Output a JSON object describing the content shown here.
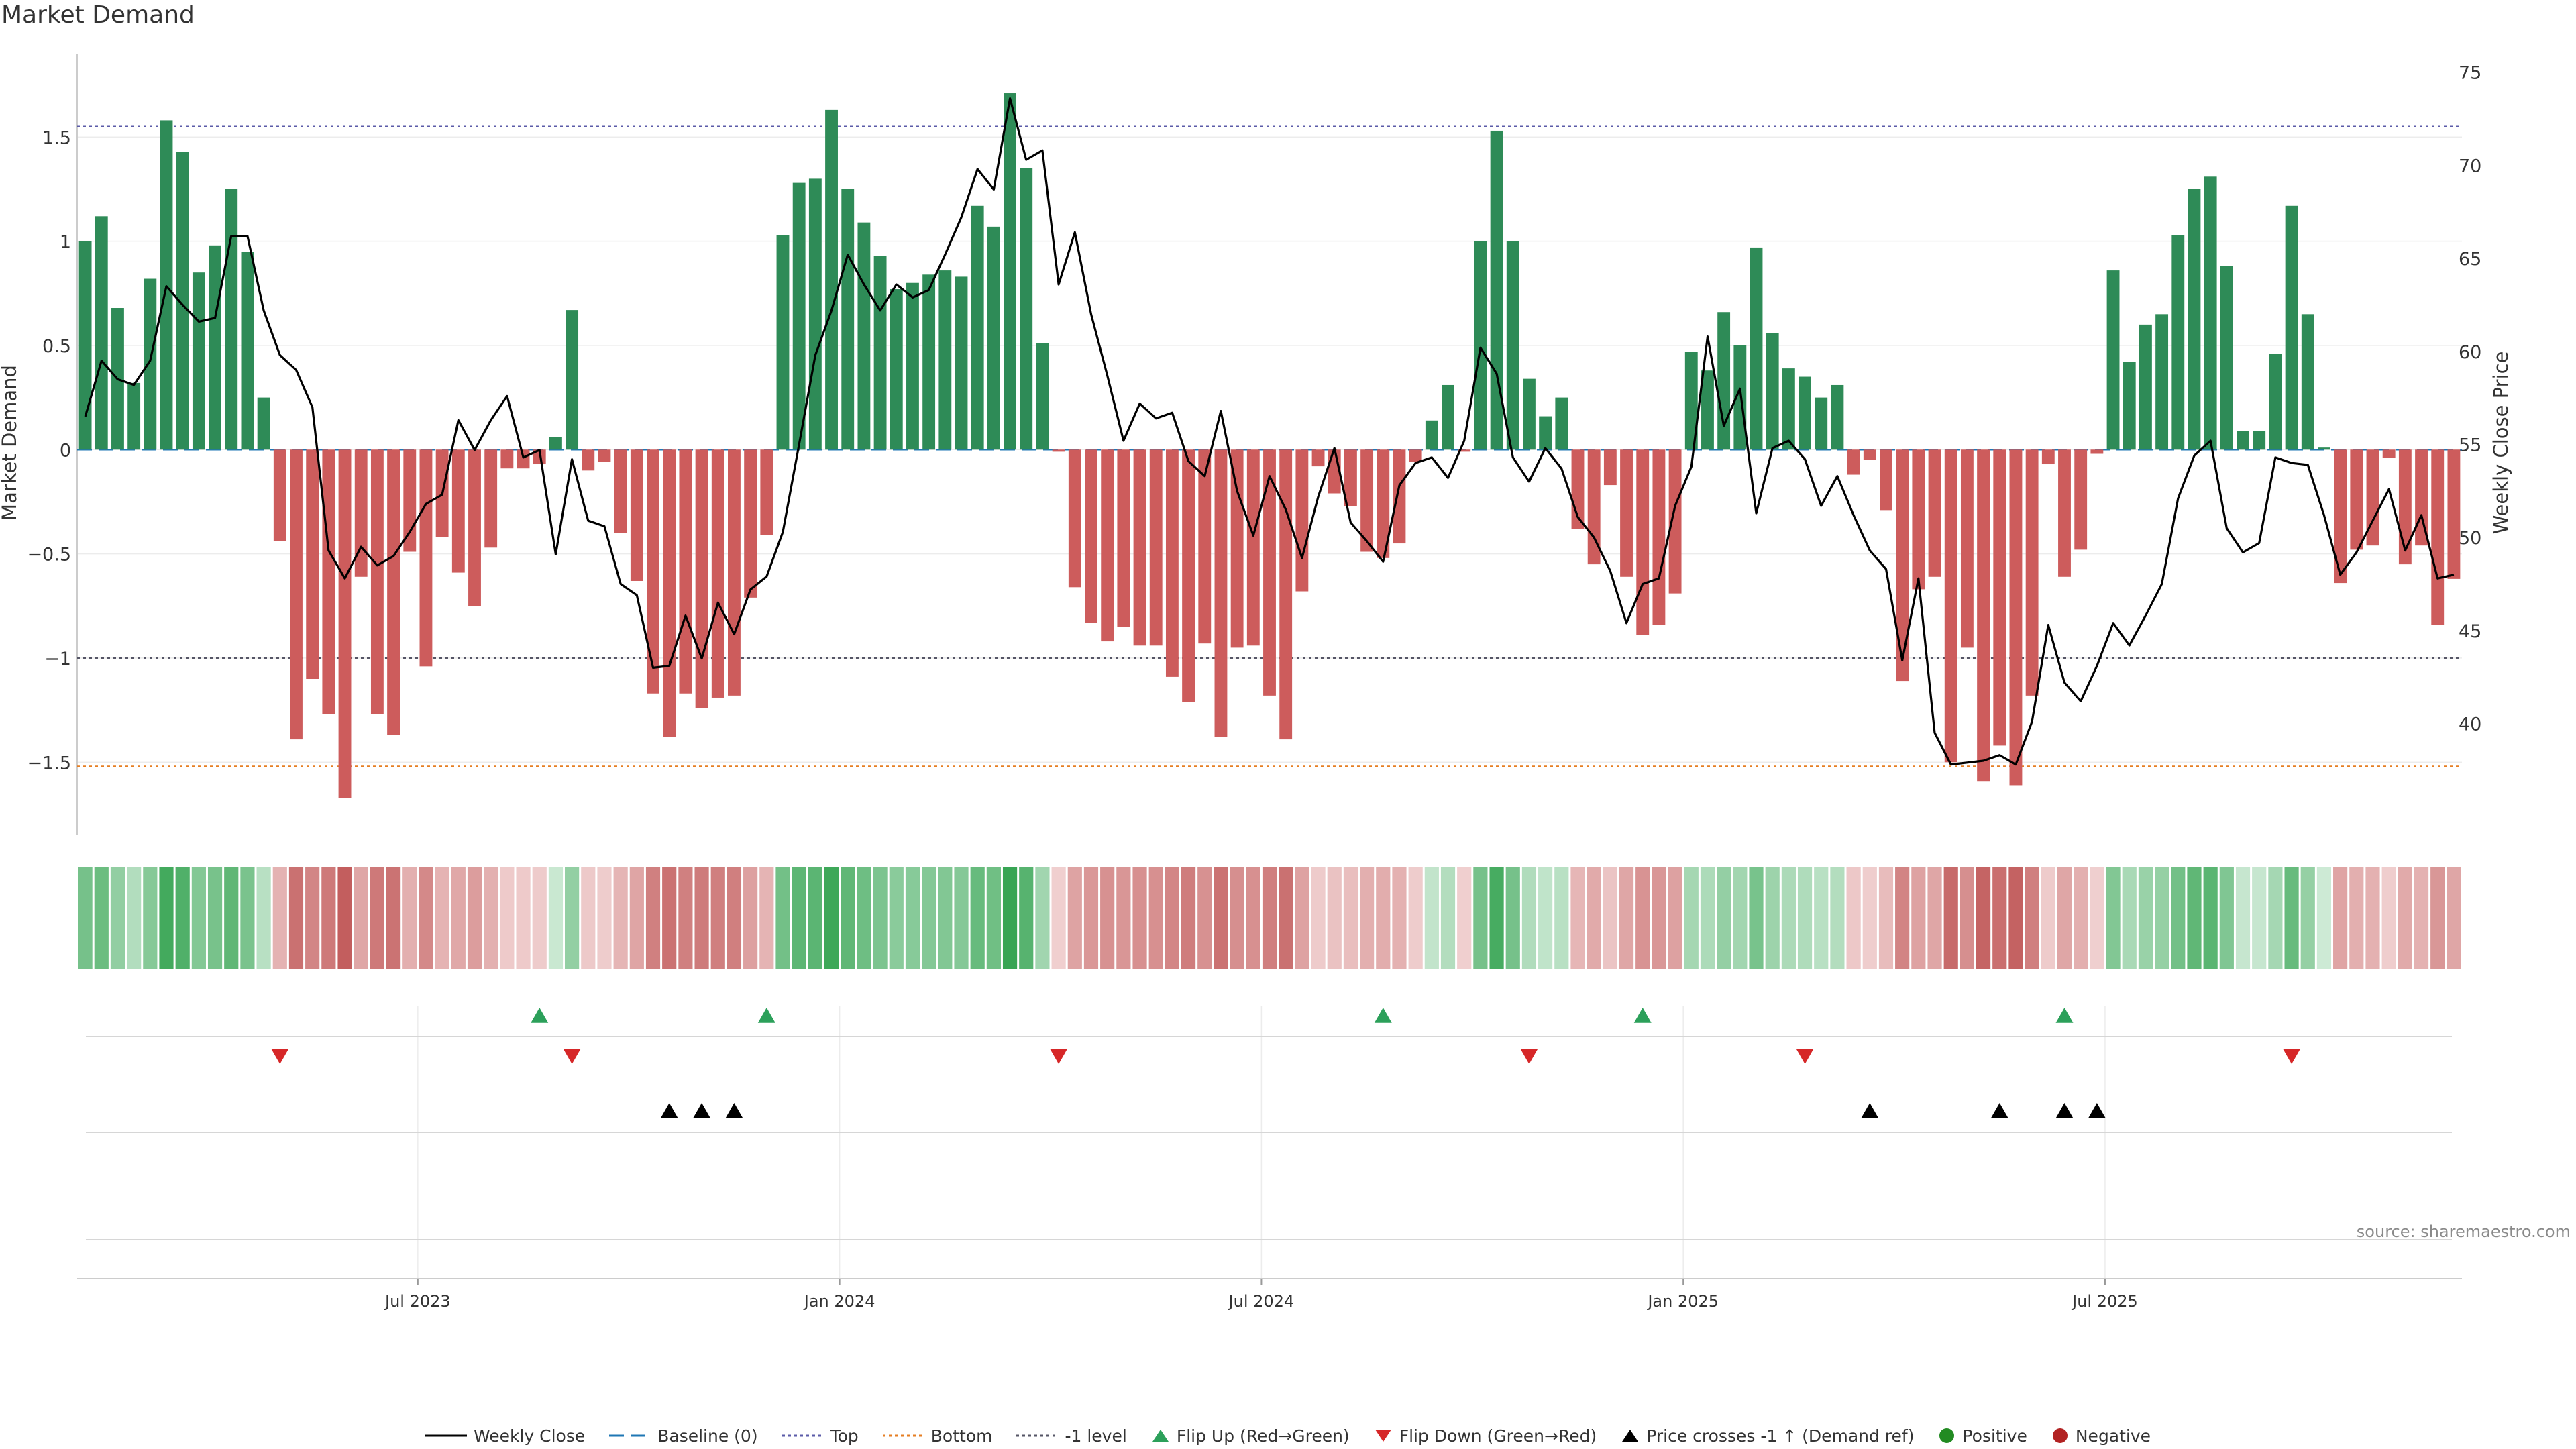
{
  "chart_data": {
    "type": "bar",
    "title": "Market Demand",
    "ylabel": "Market Demand",
    "ylabel_right": "Weekly Close Price",
    "ylim": [
      -1.85,
      1.9
    ],
    "ylim_right": [
      34,
      76
    ],
    "y_ticks": [
      -1.5,
      -1,
      -0.5,
      0,
      0.5,
      1,
      1.5
    ],
    "y_tick_labels": [
      "−1.5",
      "−1",
      "−0.5",
      "0",
      "0.5",
      "1",
      "1.5"
    ],
    "y_right_ticks": [
      40,
      45,
      50,
      55,
      60,
      65,
      70,
      75
    ],
    "x_ticks": [
      {
        "week": 21,
        "label": "Jul 2023"
      },
      {
        "week": 47,
        "label": "Jan 2024"
      },
      {
        "week": 73,
        "label": "Jul 2024"
      },
      {
        "week": 99,
        "label": "Jan 2025"
      },
      {
        "week": 125,
        "label": "Jul 2025"
      }
    ],
    "reference_lines": {
      "top": 1.55,
      "bottom": -1.52,
      "minus_one": -1.0,
      "baseline": 0
    },
    "demand": [
      1.0,
      1.12,
      0.68,
      0.32,
      0.82,
      1.58,
      1.43,
      0.85,
      0.98,
      1.25,
      0.95,
      0.25,
      -0.44,
      -1.39,
      -1.1,
      -1.27,
      -1.67,
      -0.61,
      -1.27,
      -1.37,
      -0.49,
      -1.04,
      -0.42,
      -0.59,
      -0.75,
      -0.47,
      -0.09,
      -0.09,
      -0.07,
      0.06,
      0.67,
      -0.1,
      -0.06,
      -0.4,
      -0.63,
      -1.17,
      -1.38,
      -1.17,
      -1.24,
      -1.19,
      -1.18,
      -0.71,
      -0.41,
      1.03,
      1.28,
      1.3,
      1.63,
      1.25,
      1.09,
      0.93,
      0.77,
      0.8,
      0.84,
      0.86,
      0.83,
      1.17,
      1.07,
      1.71,
      1.35,
      0.51,
      -0.01,
      -0.66,
      -0.83,
      -0.92,
      -0.85,
      -0.94,
      -0.94,
      -1.09,
      -1.21,
      -0.93,
      -1.38,
      -0.95,
      -0.94,
      -1.18,
      -1.39,
      -0.68,
      -0.08,
      -0.21,
      -0.27,
      -0.49,
      -0.52,
      -0.45,
      -0.06,
      0.14,
      0.31,
      -0.01,
      1.0,
      1.53,
      1.0,
      0.34,
      0.16,
      0.25,
      -0.38,
      -0.55,
      -0.17,
      -0.61,
      -0.89,
      -0.84,
      -0.69,
      0.47,
      0.38,
      0.66,
      0.5,
      0.97,
      0.56,
      0.39,
      0.35,
      0.25,
      0.31,
      -0.12,
      -0.05,
      -0.29,
      -1.11,
      -0.67,
      -0.61,
      -1.5,
      -0.95,
      -1.59,
      -1.42,
      -1.61,
      -1.18,
      -0.07,
      -0.61,
      -0.48,
      -0.02,
      0.86,
      0.42,
      0.6,
      0.65,
      1.03,
      1.25,
      1.31,
      0.88,
      0.09,
      0.09,
      0.46,
      1.17,
      0.65,
      0.01,
      -0.64,
      -0.48,
      -0.46,
      -0.04,
      -0.55,
      -0.46,
      -0.84,
      -0.62
    ],
    "weekly_close": [
      56.5,
      59.5,
      58.5,
      58.2,
      59.5,
      63.5,
      62.5,
      61.6,
      61.8,
      66.2,
      66.2,
      62.2,
      59.8,
      59.0,
      57.0,
      49.3,
      47.8,
      49.5,
      48.5,
      49.0,
      50.3,
      51.8,
      52.3,
      56.3,
      54.7,
      56.3,
      57.6,
      54.3,
      54.7,
      49.1,
      54.2,
      50.9,
      50.6,
      47.5,
      46.9,
      43.0,
      43.1,
      45.8,
      43.5,
      46.5,
      44.8,
      47.2,
      47.9,
      50.3,
      55.0,
      59.8,
      62.2,
      65.2,
      63.6,
      62.2,
      63.6,
      62.9,
      63.3,
      65.2,
      67.2,
      69.8,
      68.7,
      73.6,
      70.3,
      70.8,
      63.6,
      66.4,
      62.0,
      58.7,
      55.2,
      57.2,
      56.4,
      56.7,
      54.1,
      53.3,
      56.8,
      52.5,
      50.1,
      53.3,
      51.5,
      48.9,
      52.2,
      54.8,
      50.8,
      49.8,
      48.7,
      52.8,
      54.0,
      54.3,
      53.2,
      55.2,
      60.2,
      58.8,
      54.3,
      53.0,
      54.8,
      53.7,
      51.1,
      50.0,
      48.2,
      45.4,
      47.5,
      47.8,
      51.7,
      53.8,
      60.8,
      56.0,
      58.0,
      51.3,
      54.8,
      55.2,
      54.2,
      51.7,
      53.3,
      51.2,
      49.3,
      48.3,
      43.4,
      47.8,
      39.5,
      37.8,
      37.9,
      38.0,
      38.3,
      37.8,
      40.1,
      45.3,
      42.2,
      41.2,
      43.1,
      45.4,
      44.2,
      45.8,
      47.5,
      52.1,
      54.4,
      55.2,
      50.5,
      49.2,
      49.7,
      54.3,
      54.0,
      53.9,
      51.2,
      48.0,
      49.2,
      50.9,
      52.6,
      49.3,
      51.2,
      47.8,
      48.0
    ],
    "flip_up_weeks": [
      28,
      42,
      80,
      96,
      122
    ],
    "flip_down_weeks": [
      12,
      30,
      60,
      89,
      106,
      136
    ],
    "price_cross_weeks": [
      36,
      38,
      40,
      110,
      118,
      122,
      124
    ],
    "series_colors": {
      "positive": "#2e8b57",
      "negative": "#cd5c5c",
      "weekly_close": "#000000",
      "top": "#5b5ba8",
      "bottom": "#e67e22",
      "minus_one": "#555566",
      "baseline": "#1f77b4",
      "flip_up": "#2ca05a",
      "flip_down": "#d62728",
      "price_cross": "#000000",
      "positive_dot": "#228b22",
      "negative_dot": "#b22222"
    }
  },
  "source": "source: sharemaestro.com",
  "legend": {
    "weekly_close": "Weekly Close",
    "baseline": "Baseline (0)",
    "top": "Top",
    "bottom": "Bottom",
    "minus_one": "-1 level",
    "flip_up": "Flip Up (Red→Green)",
    "flip_down": "Flip Down (Green→Red)",
    "price_cross": "Price crosses -1 ↑ (Demand ref)",
    "positive": "Positive",
    "negative": "Negative"
  }
}
